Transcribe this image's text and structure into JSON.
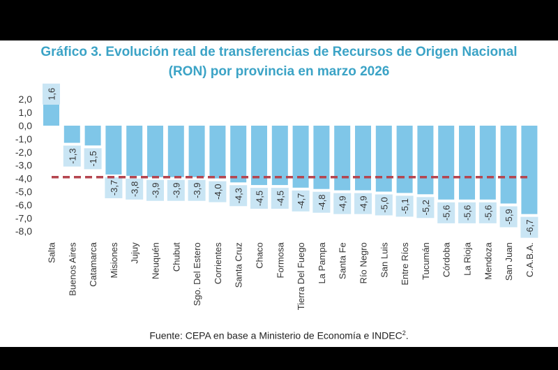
{
  "chart_data": {
    "type": "bar",
    "title": "Gráfico 3. Evolución real de transferencias de Recursos de Origen Nacional (RON) por provincia en marzo 2026",
    "title_lines": [
      "Gráfico 3. Evolución real de transferencias de Recursos de Origen Nacional",
      "(RON) por provincia en marzo 2026"
    ],
    "categories": [
      "Salta",
      "Buenos Aires",
      "Catamarca",
      "Misiones",
      "Jujuy",
      "Neuquén",
      "Chubut",
      "Sgo. Del Estero",
      "Corrientes",
      "Santa Cruz",
      "Chaco",
      "Formosa",
      "Tierra Del Fuego",
      "La Pampa",
      "Santa Fe",
      "Río Negro",
      "San Luis",
      "Entre Ríos",
      "Tucumán",
      "Córdoba",
      "La Rioja",
      "Mendoza",
      "San Juan",
      "C.A.B.A."
    ],
    "values": [
      1.6,
      -1.3,
      -1.5,
      -3.7,
      -3.8,
      -3.9,
      -3.9,
      -3.9,
      -4.0,
      -4.3,
      -4.5,
      -4.5,
      -4.7,
      -4.8,
      -4.9,
      -4.9,
      -5.0,
      -5.1,
      -5.2,
      -5.6,
      -5.6,
      -5.6,
      -5.9,
      -6.7
    ],
    "data_labels": [
      "1,6",
      "-1,3",
      "-1,5",
      "-3,7",
      "-3,8",
      "-3,9",
      "-3,9",
      "-3,9",
      "-4,0",
      "-4,3",
      "-4,5",
      "-4,5",
      "-4,7",
      "-4,8",
      "-4,9",
      "-4,9",
      "-5,0",
      "-5,1",
      "-5,2",
      "-5,6",
      "-5,6",
      "-5,6",
      "-5,9",
      "-6,7"
    ],
    "yticks": [
      "2,0",
      "1,0",
      "0,0",
      "-1,0",
      "-2,0",
      "-3,0",
      "-4,0",
      "-5,0",
      "-6,0",
      "-7,0",
      "-8,0"
    ],
    "ylim": [
      -8,
      2
    ],
    "reference_line": -3.9,
    "grid": false,
    "xlabel": "",
    "ylabel": "",
    "colors": {
      "bar": "#7fc6e8",
      "label_box": "#c9e5f4",
      "reference_line": "#b5454f",
      "title": "#3ba3c6"
    }
  },
  "source": {
    "text": "Fuente: CEPA en base a Ministerio de Economía e INDEC",
    "sup": "2",
    "end": "."
  }
}
